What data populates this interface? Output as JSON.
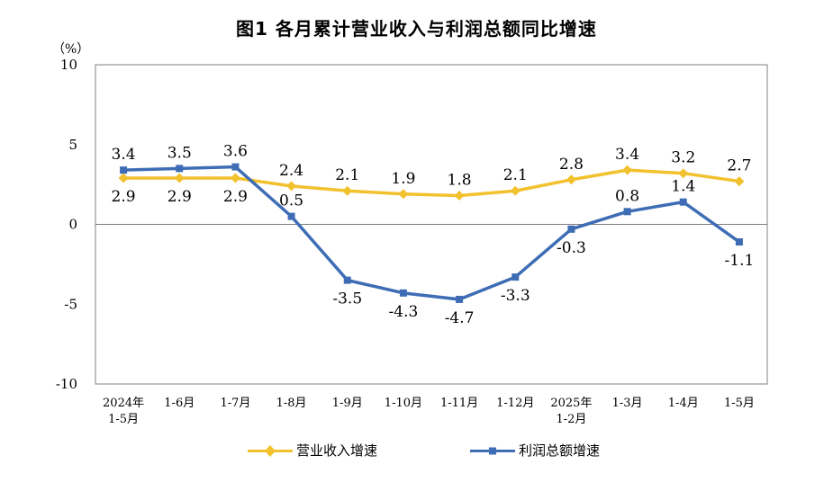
{
  "title": "图1  各月累计营业收入与利润总额同比增速",
  "chart_data": {
    "type": "line",
    "unit": "（%）",
    "categories": [
      [
        "2024年",
        "1-5月"
      ],
      [
        "1-6月"
      ],
      [
        "1-7月"
      ],
      [
        "1-8月"
      ],
      [
        "1-9月"
      ],
      [
        "1-10月"
      ],
      [
        "1-11月"
      ],
      [
        "1-12月"
      ],
      [
        "2025年",
        "1-2月"
      ],
      [
        "1-3月"
      ],
      [
        "1-4月"
      ],
      [
        "1-5月"
      ]
    ],
    "ylim": [
      -10,
      10
    ],
    "yticks": [
      "10",
      "5",
      "0",
      "-5",
      "-10"
    ],
    "ytick_values": [
      10,
      5,
      0,
      -5,
      -10
    ],
    "grid": false,
    "legend_position": "bottom",
    "series": [
      {
        "name": "营业收入增速",
        "color": "#F2C12E",
        "marker": "diamond",
        "values": [
          2.9,
          2.9,
          2.9,
          2.4,
          2.1,
          1.9,
          1.8,
          2.1,
          2.8,
          3.4,
          3.2,
          2.7
        ],
        "labels": [
          "2.9",
          "2.9",
          "2.9",
          "2.4",
          "2.1",
          "1.9",
          "1.8",
          "2.1",
          "2.8",
          "3.4",
          "3.2",
          "2.7"
        ],
        "label_positions": [
          "below",
          "below",
          "below",
          "above",
          "above",
          "above",
          "above",
          "above",
          "above",
          "above",
          "above",
          "above"
        ]
      },
      {
        "name": "利润总额增速",
        "color": "#3E6DB5",
        "marker": "square",
        "values": [
          3.4,
          3.5,
          3.6,
          0.5,
          -3.5,
          -4.3,
          -4.7,
          -3.3,
          -0.3,
          0.8,
          1.4,
          -1.1
        ],
        "labels": [
          "3.4",
          "3.5",
          "3.6",
          "0.5",
          "-3.5",
          "-4.3",
          "-4.7",
          "-3.3",
          "-0.3",
          "0.8",
          "1.4",
          "-1.1"
        ],
        "label_positions": [
          "above",
          "above",
          "above",
          "above",
          "below",
          "below",
          "below",
          "below",
          "below",
          "above",
          "above",
          "below"
        ]
      }
    ]
  }
}
